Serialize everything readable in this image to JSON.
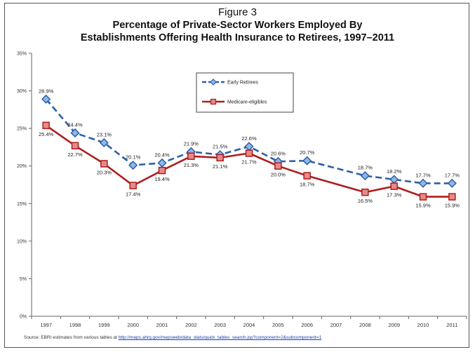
{
  "figure_label": "Figure 3",
  "title_line1": "Percentage of Private-Sector Workers Employed By",
  "title_line2": "Establishments Offering Health Insurance to Retirees, 1997–2011",
  "source_prefix": "Source: EBRI estimates from various tables at",
  "source_link": "http://meps.ahrq.gov/mepsweb/data_stats/quick_tables_search.jsp?component=2&subcomponent=1",
  "colors": {
    "early": "#2e5fa8",
    "medicare": "#b01d1d",
    "early_fill": "#8fb8e6",
    "medicare_fill": "#e58a8a"
  },
  "chart_data": {
    "type": "line",
    "categories": [
      "1997",
      "1998",
      "1999",
      "2000",
      "2001",
      "2002",
      "2003",
      "2004",
      "2005",
      "2006",
      "2007",
      "2008",
      "2009",
      "2010",
      "2011"
    ],
    "ylim": [
      0,
      35
    ],
    "yticks": [
      "0%",
      "5%",
      "10%",
      "15%",
      "20%",
      "25%",
      "30%",
      "35%"
    ],
    "legend_position": "top-center",
    "series": [
      {
        "name": "Early Retirees",
        "values": [
          28.9,
          24.4,
          23.1,
          20.1,
          20.4,
          21.9,
          21.5,
          22.6,
          20.6,
          20.7,
          null,
          18.7,
          18.2,
          17.7,
          17.7
        ],
        "labels": [
          "28.9%",
          "24.4%",
          "23.1%",
          "20.1%",
          "20.4%",
          "21.9%",
          "21.5%",
          "22.6%",
          "20.6%",
          "20.7%",
          "",
          "18.7%",
          "18.2%",
          "17.7%",
          "17.7%"
        ]
      },
      {
        "name": "Medicare-eligibles",
        "values": [
          25.4,
          22.7,
          20.3,
          17.4,
          19.4,
          21.3,
          21.1,
          21.7,
          20.0,
          18.7,
          null,
          16.5,
          17.3,
          15.9,
          15.9
        ],
        "labels": [
          "25.4%",
          "22.7%",
          "20.3%",
          "17.4%",
          "19.4%",
          "21.3%",
          "21.1%",
          "21.7%",
          "20.0%",
          "18.7%",
          "",
          "16.5%",
          "17.3%",
          "15.9%",
          "15.9%"
        ]
      }
    ]
  }
}
